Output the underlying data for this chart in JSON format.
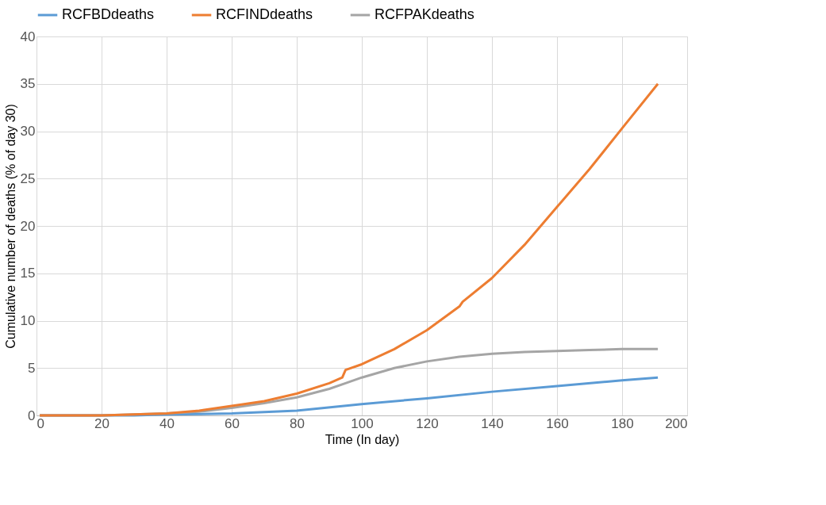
{
  "chart_data": {
    "type": "line",
    "xlabel": "Time (In day)",
    "ylabel": "Cumulative number of deaths  (% of day 30)",
    "xlim": [
      0,
      200
    ],
    "xticks": [
      0,
      20,
      40,
      60,
      80,
      100,
      120,
      140,
      160,
      180,
      200
    ],
    "ylim": [
      0,
      40
    ],
    "yticks": [
      0,
      5,
      10,
      15,
      20,
      25,
      30,
      35,
      40
    ],
    "grid": true,
    "legend": "top",
    "marker": "none",
    "line_style": "solid",
    "series": [
      {
        "name": "RCFBDdeaths",
        "color": "#5b9bd5",
        "x": [
          1,
          20,
          30,
          40,
          60,
          80,
          100,
          120,
          140,
          160,
          180,
          191
        ],
        "values": [
          0,
          0,
          0,
          0.1,
          0.2,
          0.5,
          1.2,
          1.8,
          2.5,
          3.1,
          3.7,
          4.0
        ]
      },
      {
        "name": "RCFINDdeaths",
        "color": "#ed7d31",
        "x": [
          1,
          20,
          30,
          40,
          50,
          60,
          70,
          80,
          90,
          94,
          95,
          100,
          110,
          120,
          130,
          131,
          140,
          150,
          160,
          170,
          180,
          191
        ],
        "values": [
          0,
          0,
          0.1,
          0.2,
          0.5,
          1.0,
          1.5,
          2.3,
          3.4,
          4.0,
          4.8,
          5.4,
          7.0,
          9.0,
          11.5,
          12.0,
          14.5,
          18,
          22,
          26,
          30.3,
          35
        ]
      },
      {
        "name": "RCFPAKdeaths",
        "color": "#a5a5a5",
        "x": [
          1,
          20,
          30,
          40,
          50,
          60,
          70,
          80,
          90,
          95,
          100,
          110,
          120,
          130,
          140,
          150,
          160,
          170,
          180,
          191
        ],
        "values": [
          0,
          0,
          0.1,
          0.2,
          0.4,
          0.8,
          1.3,
          1.9,
          2.8,
          3.4,
          4.0,
          5.0,
          5.7,
          6.2,
          6.5,
          6.7,
          6.8,
          6.9,
          7.0,
          7.0
        ]
      }
    ]
  }
}
